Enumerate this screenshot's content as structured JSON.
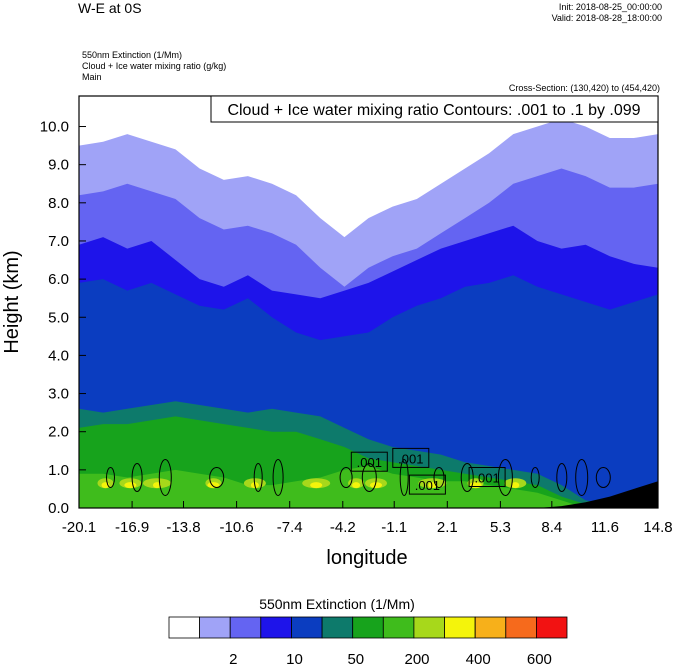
{
  "header": {
    "title": "W-E at 0S",
    "init": "Init: 2018-08-25_00:00:00",
    "valid": "Valid: 2018-08-28_18:00:00",
    "var1": "550nm Extinction   (1/Mm)",
    "var2": "Cloud + Ice water mixing ratio   (g/kg)",
    "var3": "Main",
    "cross_section": "Cross-Section: (130,420) to (454,420)"
  },
  "chart_data": {
    "type": "heatmap",
    "title": "Cloud + Ice water mixing ratio Contours: .001 to .1 by .099",
    "xlabel": "longitude",
    "ylabel": "Height (km)",
    "x_ticks": [
      "-20.1",
      "-16.9",
      "-13.8",
      "-10.6",
      "-7.4",
      "-4.2",
      "-1.1",
      "2.1",
      "5.3",
      "8.4",
      "11.6",
      "14.8"
    ],
    "xlim": [
      -20.1,
      14.8
    ],
    "y_ticks": [
      "0.0",
      "1.0",
      "2.0",
      "3.0",
      "4.0",
      "5.0",
      "6.0",
      "7.0",
      "8.0",
      "9.0",
      "10.0"
    ],
    "ylim": [
      0,
      10.8
    ],
    "contour_labels": [
      ".001",
      ".001",
      ".001",
      ".001"
    ],
    "colorbar": {
      "title": "550nm Extinction  (1/Mm)",
      "tick_labels": [
        "2",
        "10",
        "50",
        "200",
        "400",
        "600"
      ],
      "colors": [
        "#ffffff",
        "#a0a3f7",
        "#6464f2",
        "#1e14ea",
        "#0b3dc0",
        "#0d7a6b",
        "#17a31c",
        "#3fbc1c",
        "#a7d81b",
        "#f4f40b",
        "#f7b01a",
        "#f66a1c",
        "#f21212"
      ]
    },
    "layers_km": [
      {
        "level": "2",
        "top": [
          8.2,
          8.3,
          8.5,
          8.3,
          8.1,
          7.6,
          7.3,
          7.4,
          7.2,
          6.9,
          6.3,
          5.8,
          6.3,
          6.6,
          6.8,
          7.2,
          7.6,
          8.0,
          8.5,
          8.7,
          8.9,
          8.7,
          8.4,
          8.4,
          8.5
        ]
      },
      {
        "level": "10",
        "top": [
          6.9,
          7.1,
          6.8,
          7.0,
          6.5,
          6.0,
          5.8,
          6.1,
          5.7,
          5.6,
          5.5,
          5.7,
          5.9,
          6.2,
          6.5,
          6.8,
          7.0,
          7.2,
          7.4,
          7.0,
          6.8,
          6.9,
          6.6,
          6.4,
          6.3
        ]
      },
      {
        "level": "50",
        "top": [
          5.9,
          6.0,
          5.7,
          5.9,
          5.6,
          5.3,
          5.2,
          5.5,
          5.0,
          4.6,
          4.4,
          4.5,
          4.6,
          5.0,
          5.3,
          5.5,
          5.8,
          5.9,
          6.1,
          5.8,
          5.6,
          5.4,
          5.2,
          5.4,
          5.6
        ]
      },
      {
        "level": "200-tealband",
        "top": [
          2.6,
          2.5,
          2.6,
          2.7,
          2.8,
          2.7,
          2.6,
          2.5,
          2.6,
          2.5,
          2.4,
          2.1,
          1.8,
          1.6,
          1.5,
          1.4,
          1.2,
          1.1,
          1.0,
          0.9,
          0.6,
          0.2,
          0.1,
          0.1,
          0.0
        ]
      },
      {
        "level": "200",
        "top": [
          2.1,
          2.2,
          2.2,
          2.3,
          2.4,
          2.3,
          2.2,
          2.1,
          2.0,
          2.0,
          1.8,
          1.6,
          1.3,
          1.2,
          1.1,
          1.0,
          0.9,
          0.8,
          0.7,
          0.6,
          0.3,
          0.1,
          0.0,
          0.0,
          0.0
        ]
      },
      {
        "level": "400",
        "top": [
          0.9,
          0.9,
          0.8,
          0.9,
          1.0,
          0.9,
          0.8,
          0.6,
          0.6,
          0.7,
          0.8,
          1.0,
          1.1,
          0.9,
          0.8,
          0.7,
          0.7,
          0.6,
          0.5,
          0.4,
          0.2,
          0.0,
          0.0,
          0.0,
          0.0
        ]
      },
      {
        "level": "terrain",
        "top": [
          0,
          0,
          0,
          0,
          0,
          0,
          0,
          0,
          0,
          0,
          0,
          0,
          0,
          0,
          0,
          0,
          0,
          0,
          0,
          0,
          0.05,
          0.15,
          0.3,
          0.5,
          0.7
        ]
      }
    ]
  }
}
